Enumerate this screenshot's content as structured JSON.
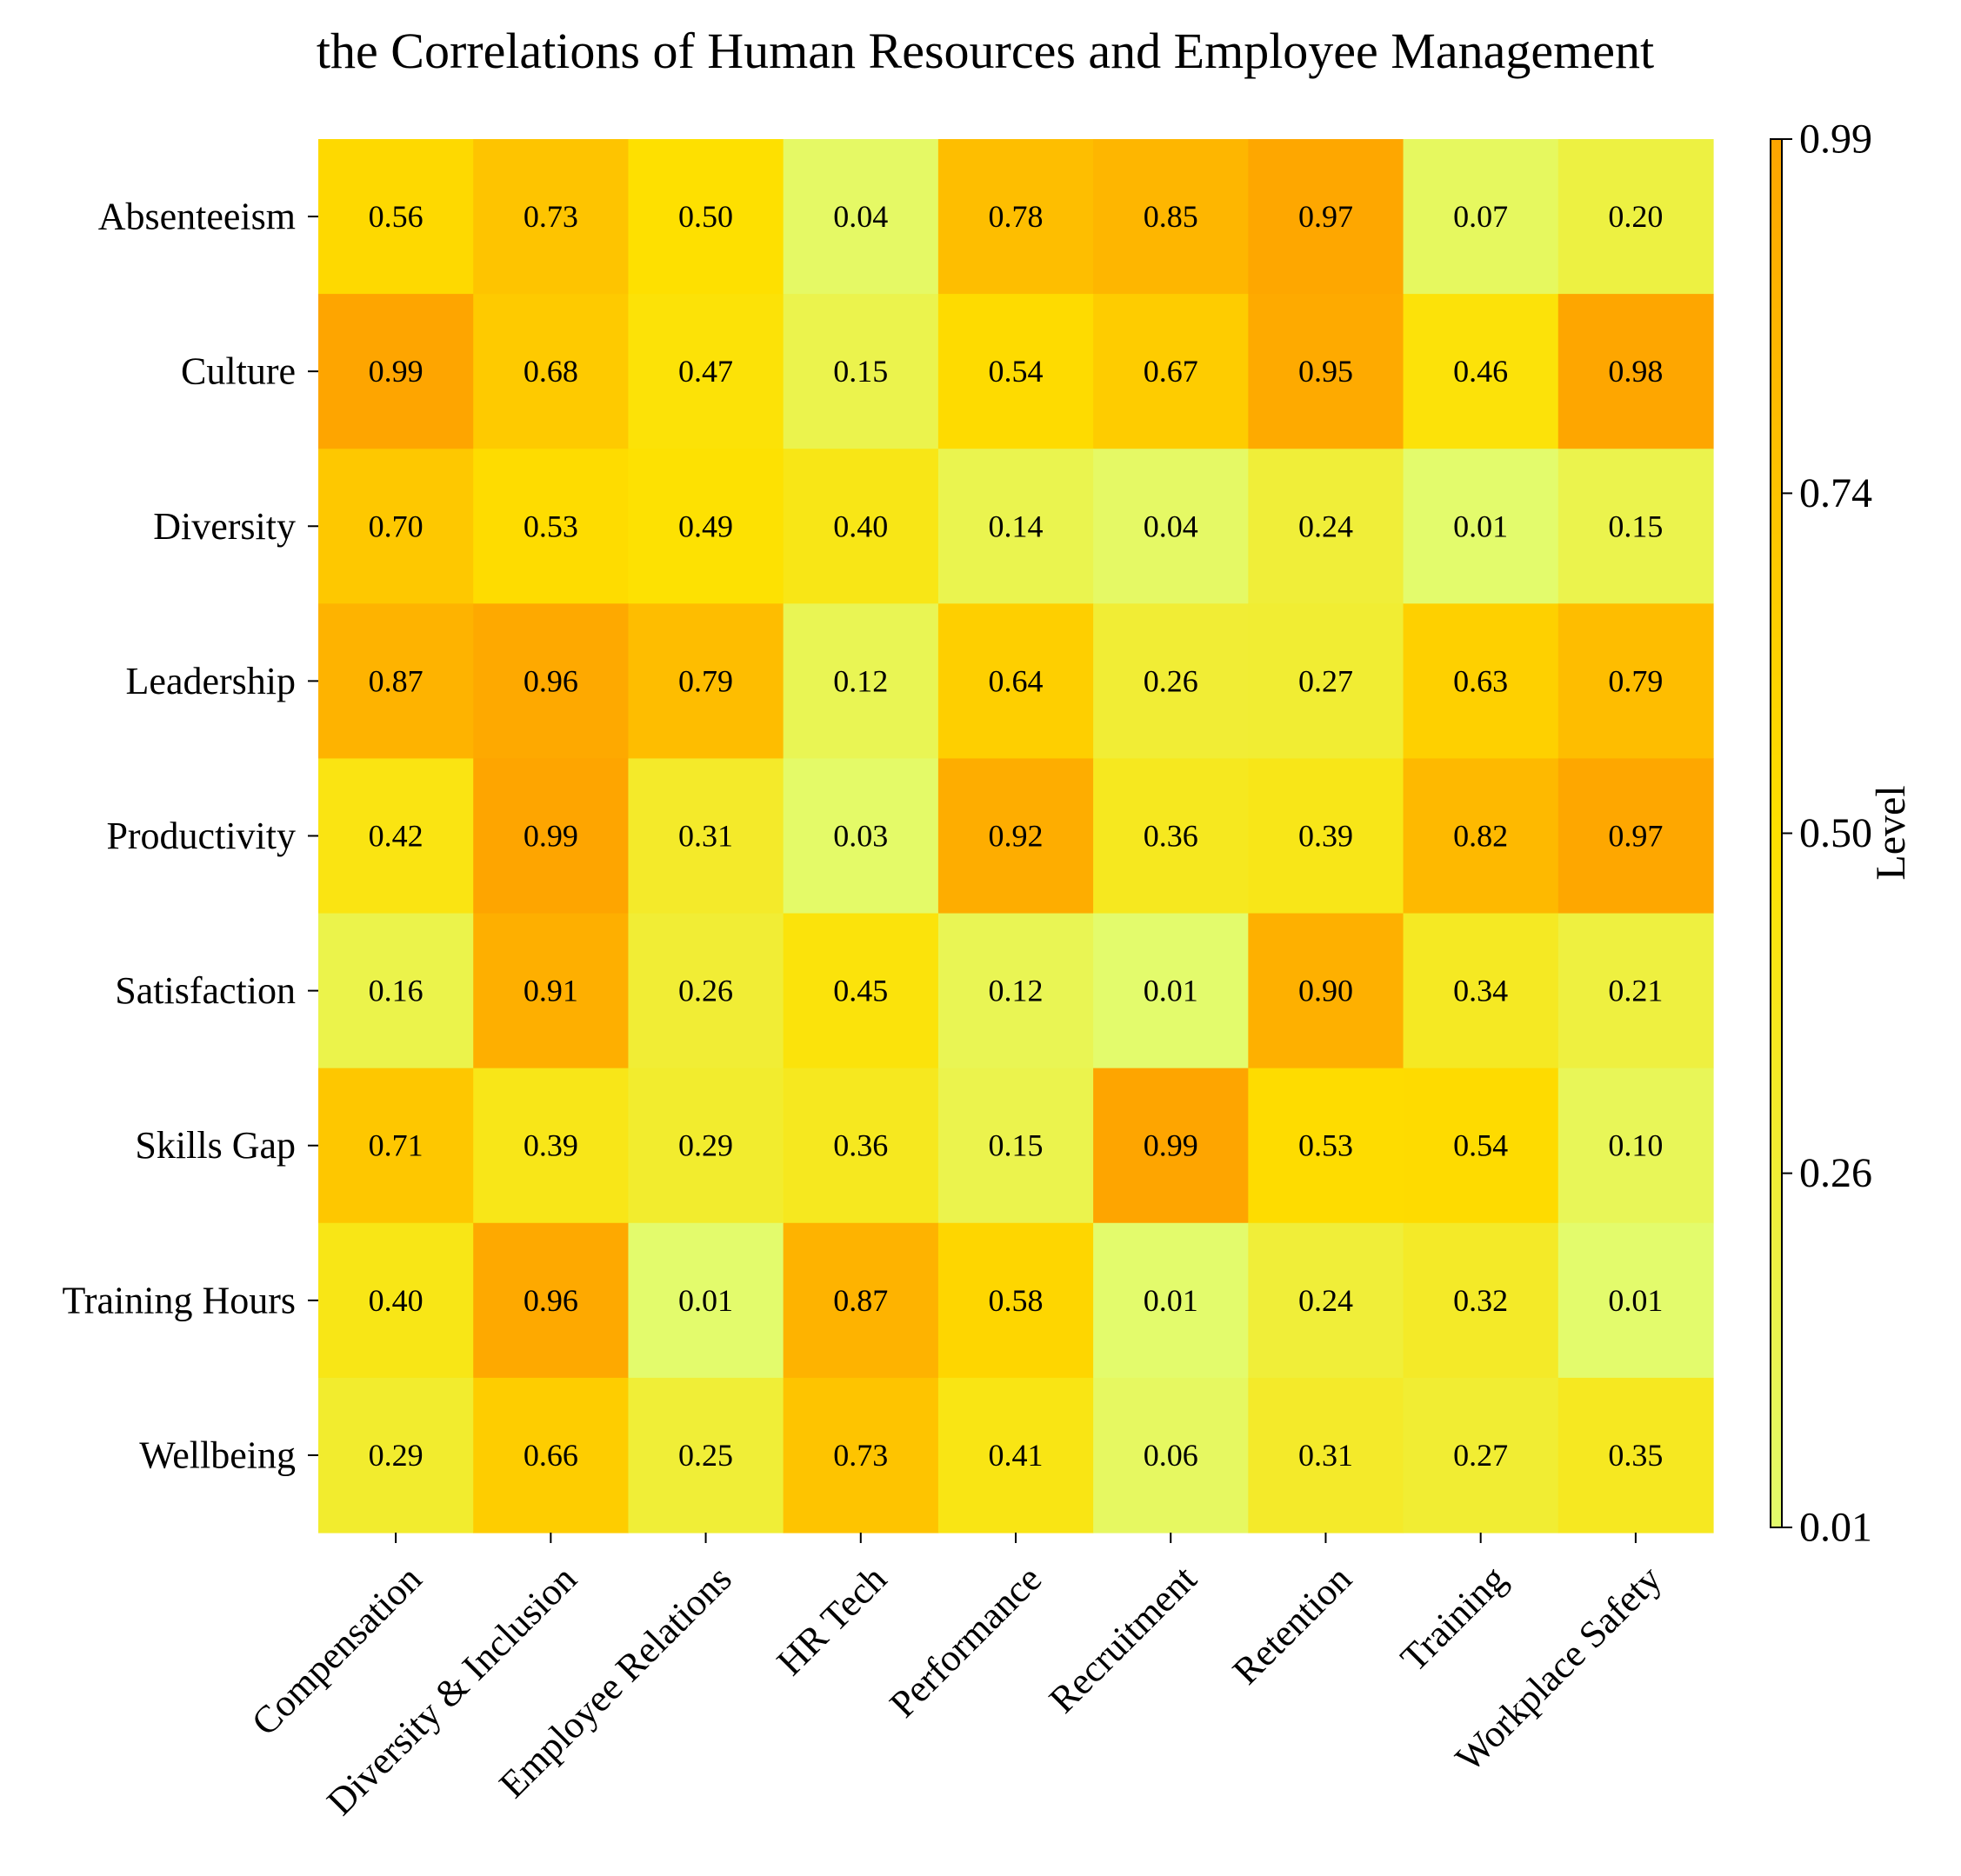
{
  "chart_data": {
    "type": "heatmap",
    "title": "the Correlations of Human Resources and Employee Management",
    "xlabel": "",
    "ylabel": "",
    "x_categories": [
      "Compensation",
      "Diversity & Inclusion",
      "Employee Relations",
      "HR Tech",
      "Performance",
      "Recruitment",
      "Retention",
      "Training",
      "Workplace Safety"
    ],
    "y_categories": [
      "Absenteeism",
      "Culture",
      "Diversity",
      "Leadership",
      "Productivity",
      "Satisfaction",
      "Skills Gap",
      "Training Hours",
      "Wellbeing"
    ],
    "values": [
      [
        0.56,
        0.73,
        0.5,
        0.04,
        0.78,
        0.85,
        0.97,
        0.07,
        0.2
      ],
      [
        0.99,
        0.68,
        0.47,
        0.15,
        0.54,
        0.67,
        0.95,
        0.46,
        0.98
      ],
      [
        0.7,
        0.53,
        0.49,
        0.4,
        0.14,
        0.04,
        0.24,
        0.01,
        0.15
      ],
      [
        0.87,
        0.96,
        0.79,
        0.12,
        0.64,
        0.26,
        0.27,
        0.63,
        0.79
      ],
      [
        0.42,
        0.99,
        0.31,
        0.03,
        0.92,
        0.36,
        0.39,
        0.82,
        0.97
      ],
      [
        0.16,
        0.91,
        0.26,
        0.45,
        0.12,
        0.01,
        0.9,
        0.34,
        0.21
      ],
      [
        0.71,
        0.39,
        0.29,
        0.36,
        0.15,
        0.99,
        0.53,
        0.54,
        0.1
      ],
      [
        0.4,
        0.96,
        0.01,
        0.87,
        0.58,
        0.01,
        0.24,
        0.32,
        0.01
      ],
      [
        0.29,
        0.66,
        0.25,
        0.73,
        0.41,
        0.06,
        0.31,
        0.27,
        0.35
      ]
    ],
    "value_format": "2 decimals",
    "colorbar": {
      "label": "Level",
      "min": 0.01,
      "max": 0.99,
      "ticks": [
        "0.01",
        "0.26",
        "0.50",
        "0.74",
        "0.99"
      ],
      "colors": [
        "#e3fb6c",
        "#fee000",
        "#fea500"
      ]
    },
    "grid": false
  }
}
